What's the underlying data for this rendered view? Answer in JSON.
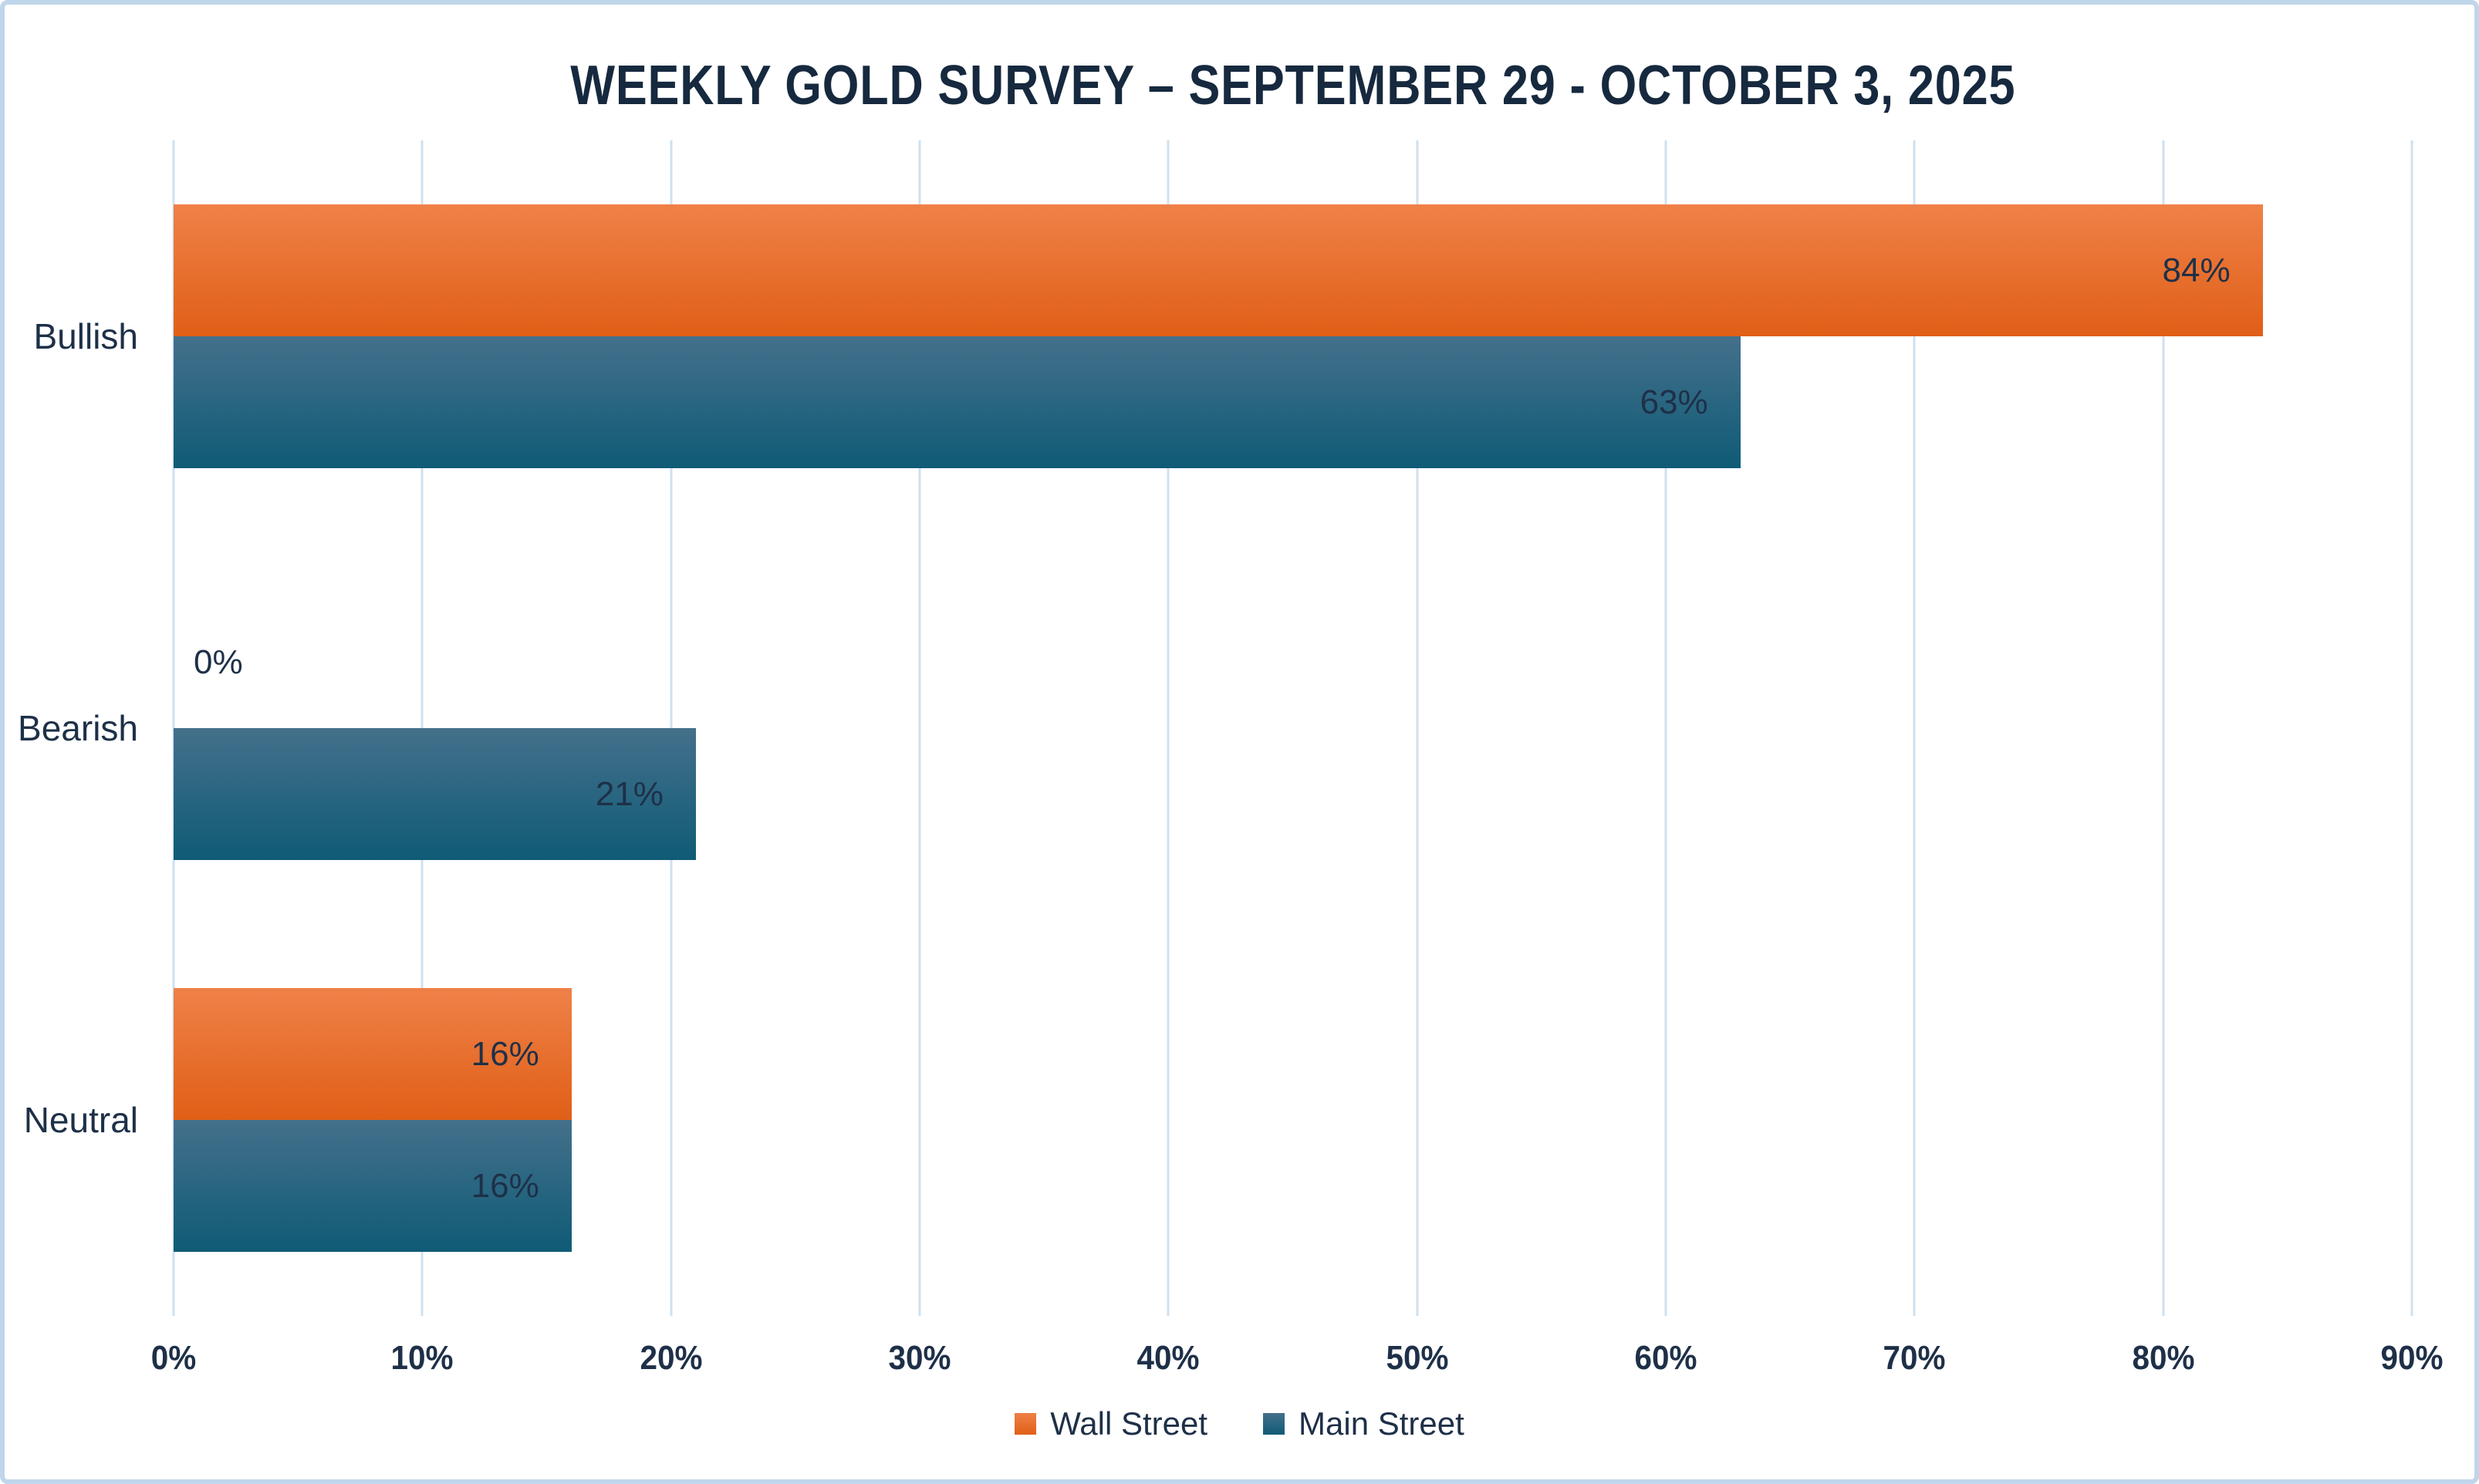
{
  "chart_data": {
    "type": "bar",
    "orientation": "horizontal",
    "title": "WEEKLY GOLD SURVEY – SEPTEMBER 29 - OCTOBER 3, 2025",
    "categories": [
      "Bullish",
      "Bearish",
      "Neutral"
    ],
    "series": [
      {
        "name": "Wall Street",
        "values": [
          84,
          0,
          16
        ],
        "color_top": "#ef8148",
        "color_bottom": "#e05f17"
      },
      {
        "name": "Main Street",
        "values": [
          63,
          21,
          16
        ],
        "color_top": "#44708b",
        "color_bottom": "#0f5b76"
      }
    ],
    "value_suffix": "%",
    "xlim": [
      0,
      90
    ],
    "x_tick_step": 10,
    "x_ticks": [
      "0%",
      "10%",
      "20%",
      "30%",
      "40%",
      "50%",
      "60%",
      "70%",
      "80%",
      "90%"
    ],
    "grid": true,
    "data_labels": "inside-end",
    "legend_position": "bottom"
  },
  "colors": {
    "title_text": "#16293e",
    "label_text": "#1e3048",
    "gridline": "#cfe0ef",
    "frame_border": "#bfd6eb",
    "background": "#ffffff"
  }
}
